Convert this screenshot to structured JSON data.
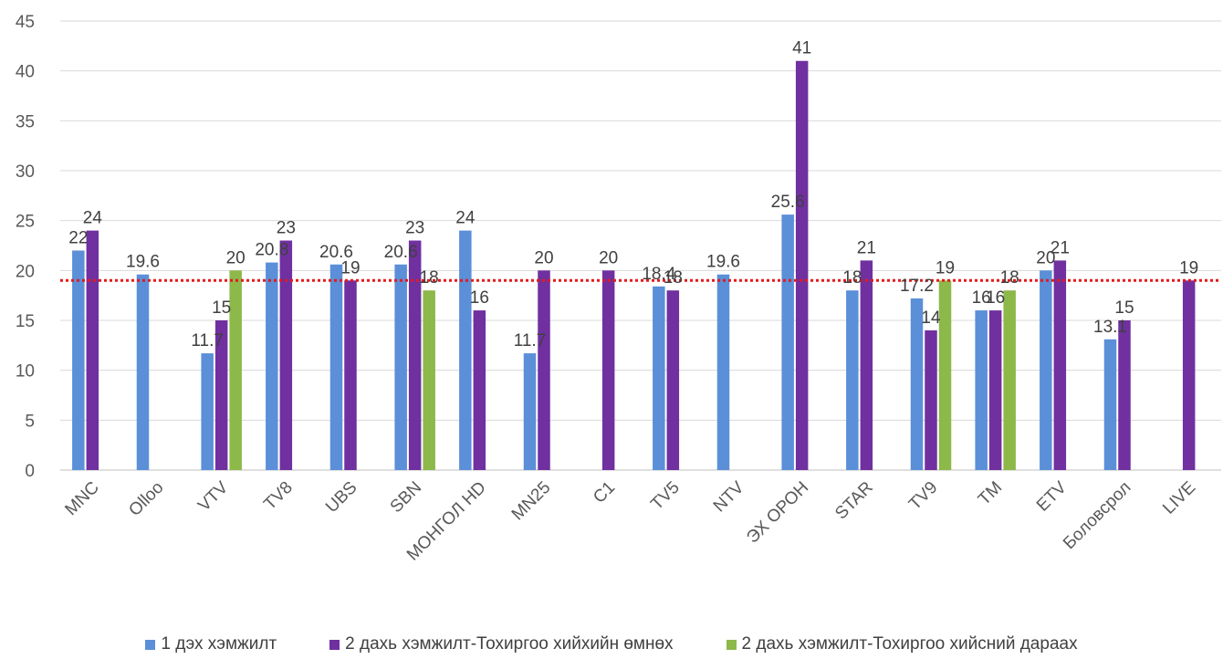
{
  "chart_data": {
    "type": "bar",
    "title": "",
    "xlabel": "",
    "ylabel": "",
    "ylim": [
      0,
      45
    ],
    "yticks": [
      0,
      5,
      10,
      15,
      20,
      25,
      30,
      35,
      40,
      45
    ],
    "categories": [
      "MNC",
      "Olloo",
      "VTV",
      "TV8",
      "UBS",
      "SBN",
      "МОНГОЛ HD",
      "MN25",
      "C1",
      "TV5",
      "NTV",
      "ЭХ ОРОН",
      "STAR",
      "TV9",
      "TM",
      "ETV",
      "Боловсрол",
      "LIVE"
    ],
    "series": [
      {
        "name": "1 дэх хэмжилт",
        "color": "#5b8fd8",
        "values": [
          22,
          19.6,
          11.7,
          20.8,
          20.6,
          20.6,
          24,
          11.7,
          null,
          18.4,
          19.6,
          25.6,
          18,
          17.2,
          16,
          20,
          13.1,
          null
        ]
      },
      {
        "name": "2 дахь хэмжилт-Тохиргоо хийхийн өмнөх",
        "color": "#7030a0",
        "values": [
          24,
          null,
          15,
          23,
          19,
          23,
          16,
          20,
          20,
          18,
          null,
          41,
          21,
          14,
          16,
          21,
          15,
          19
        ]
      },
      {
        "name": "2 дахь хэмжилт-Тохиргоо хийсний дараах",
        "color": "#8db84a",
        "values": [
          null,
          null,
          20,
          null,
          null,
          18,
          null,
          null,
          null,
          null,
          null,
          null,
          null,
          19,
          18,
          null,
          null,
          null
        ]
      }
    ],
    "reference_line": {
      "value": 19,
      "color": "#e31a1c",
      "style": "dotted"
    },
    "grid": true,
    "legend_position": "bottom"
  }
}
